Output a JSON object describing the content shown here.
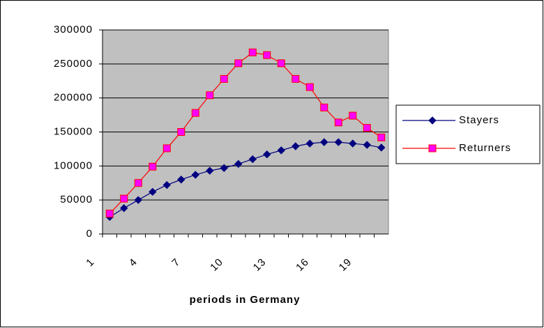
{
  "chart_data": {
    "type": "line",
    "x_label": "periods in Germany",
    "categories": [
      "1",
      null,
      null,
      "4",
      null,
      null,
      "7",
      null,
      null,
      "10",
      null,
      null,
      "13",
      null,
      null,
      "16",
      null,
      null,
      "19",
      null
    ],
    "series": [
      {
        "name": "Stayers",
        "color": "#000080",
        "marker": "diamond",
        "marker_color": "#000080",
        "values": [
          25000,
          38000,
          50000,
          62000,
          72000,
          80000,
          87000,
          93000,
          97000,
          103000,
          110000,
          117000,
          123000,
          129000,
          133000,
          135000,
          135000,
          133000,
          131000,
          127000
        ]
      },
      {
        "name": "Returners",
        "color": "#ff0000",
        "marker": "square",
        "marker_color": "#ff00ff",
        "values": [
          30000,
          52000,
          75000,
          99000,
          126000,
          150000,
          178000,
          204000,
          228000,
          251000,
          267000,
          263000,
          251000,
          228000,
          216000,
          186000,
          164000,
          174000,
          156000,
          142000
        ]
      }
    ],
    "ylim": [
      0,
      300000
    ],
    "yticks": [
      0,
      50000,
      100000,
      150000,
      200000,
      250000,
      300000
    ],
    "grid": true,
    "legend": "right",
    "plot_background": "#c0c0c0"
  }
}
